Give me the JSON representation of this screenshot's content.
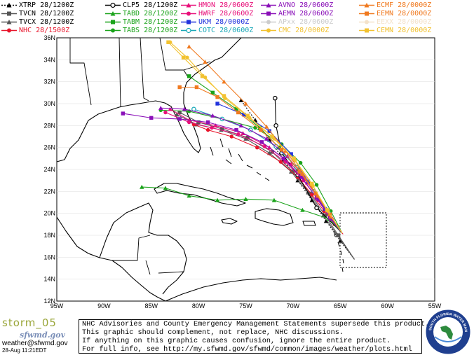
{
  "legend": [
    {
      "label": "XTRP 28/1200Z",
      "color": "#000000",
      "marker": "tri-dashed"
    },
    {
      "label": "TVCN 28/1200Z",
      "color": "#555555",
      "marker": "square"
    },
    {
      "label": "TVCX 28/1200Z",
      "color": "#555555",
      "marker": "triangle"
    },
    {
      "label": "NHC 28/1500Z",
      "color": "#e8152b",
      "marker": "circle"
    },
    {
      "label": "CLP5 28/1200Z",
      "color": "#000000",
      "marker": "circle-open"
    },
    {
      "label": "TABD 28/1200Z",
      "color": "#1aa31a",
      "marker": "triangle"
    },
    {
      "label": "TABM 28/1200Z",
      "color": "#1aa31a",
      "marker": "square"
    },
    {
      "label": "TABS 28/1200Z",
      "color": "#1aa31a",
      "marker": "circle"
    },
    {
      "label": "HMON 28/0600Z",
      "color": "#e8107a",
      "marker": "triangle"
    },
    {
      "label": "HWRF 28/0600Z",
      "color": "#e8107a",
      "marker": "circle"
    },
    {
      "label": "UKM 28/0000Z",
      "color": "#2233dd",
      "marker": "square"
    },
    {
      "label": "COTC 28/0600Z",
      "color": "#1aa8b8",
      "marker": "circle-open"
    },
    {
      "label": "AVNO 28/0600Z",
      "color": "#8a10b8",
      "marker": "triangle"
    },
    {
      "label": "AEMN 28/0600Z",
      "color": "#8a10b8",
      "marker": "square"
    },
    {
      "label": "APxx 28/0600Z",
      "color": "#cccccc",
      "marker": "circle"
    },
    {
      "label": "CMC 28/0000Z",
      "color": "#f2c230",
      "marker": "circle"
    },
    {
      "label": "ECMF 28/0000Z",
      "color": "#f07a20",
      "marker": "triangle"
    },
    {
      "label": "EEMN 28/0000Z",
      "color": "#f07a20",
      "marker": "square"
    },
    {
      "label": "EEXX 28/0000Z",
      "color": "#f4e2ca",
      "marker": "circle"
    },
    {
      "label": "CEMN 28/0000Z",
      "color": "#f2c230",
      "marker": "square"
    }
  ],
  "map": {
    "lat_labels": [
      "36N",
      "34N",
      "32N",
      "30N",
      "28N",
      "26N",
      "24N",
      "22N",
      "20N",
      "18N",
      "16N",
      "14N",
      "12N"
    ],
    "lon_labels": [
      "95W",
      "90W",
      "85W",
      "80W",
      "75W",
      "70W",
      "65W",
      "60W",
      "55W"
    ],
    "lat_range": [
      12,
      36
    ],
    "lon_range": [
      -95,
      -55
    ],
    "tracks": [
      {
        "name": "XTRP",
        "color": "#000000",
        "marker": "tri",
        "points": [
          [
            -63.5,
            15.8
          ],
          [
            -65,
            17.5
          ],
          [
            -66.5,
            19.3
          ],
          [
            -68,
            21.2
          ],
          [
            -69.5,
            23
          ],
          [
            -71,
            24.9
          ],
          [
            -72.5,
            26.7
          ],
          [
            -74,
            28.5
          ],
          [
            -75.5,
            30.3
          ]
        ]
      },
      {
        "name": "TVCN",
        "color": "#555555",
        "marker": "square",
        "points": [
          [
            -63.5,
            15.8
          ],
          [
            -65.2,
            18
          ],
          [
            -66.6,
            19.8
          ],
          [
            -68.2,
            21.8
          ],
          [
            -70,
            23.8
          ],
          [
            -72.2,
            25.6
          ],
          [
            -74.8,
            26.9
          ],
          [
            -77.5,
            27.7
          ],
          [
            -80,
            28.3
          ],
          [
            -82,
            29.2
          ]
        ]
      },
      {
        "name": "TVCX",
        "color": "#555555",
        "marker": "tri",
        "points": [
          [
            -63.5,
            15.8
          ],
          [
            -65.3,
            18
          ],
          [
            -66.8,
            19.8
          ],
          [
            -68.4,
            21.9
          ],
          [
            -70.2,
            23.8
          ],
          [
            -72.5,
            25.5
          ],
          [
            -75,
            26.8
          ],
          [
            -77.6,
            27.6
          ],
          [
            -80.2,
            28.1
          ],
          [
            -82.3,
            29
          ]
        ]
      },
      {
        "name": "NHC",
        "color": "#e8152b",
        "marker": "circle",
        "points": [
          [
            -64.7,
            18.1
          ],
          [
            -65.6,
            19
          ],
          [
            -66.7,
            20.2
          ],
          [
            -68,
            21.7
          ],
          [
            -69.5,
            23.3
          ],
          [
            -71.3,
            24.7
          ],
          [
            -73.8,
            26
          ],
          [
            -76.5,
            27
          ],
          [
            -79,
            27.6
          ],
          [
            -80.5,
            28.1
          ]
        ]
      },
      {
        "name": "CLP5",
        "color": "#000000",
        "marker": "circle-open",
        "points": [
          [
            -64.8,
            18.2
          ],
          [
            -67.5,
            20.5
          ],
          [
            -69.5,
            23.5
          ],
          [
            -71.2,
            25.5
          ],
          [
            -71.8,
            28
          ],
          [
            -71.9,
            30.5
          ]
        ]
      },
      {
        "name": "TABD",
        "color": "#1aa31a",
        "marker": "tri",
        "points": [
          [
            -64.8,
            18.2
          ],
          [
            -66.2,
            19.5
          ],
          [
            -69,
            20.3
          ],
          [
            -72,
            21.2
          ],
          [
            -75,
            21.3
          ],
          [
            -78,
            21.2
          ],
          [
            -81,
            21.6
          ],
          [
            -83.5,
            22.3
          ],
          [
            -86,
            22.4
          ]
        ]
      },
      {
        "name": "TABM",
        "color": "#1aa31a",
        "marker": "square",
        "points": [
          [
            -64.8,
            18.2
          ],
          [
            -66.2,
            20
          ],
          [
            -67.8,
            22
          ],
          [
            -69.5,
            24
          ],
          [
            -71.5,
            26
          ],
          [
            -73.5,
            27.8
          ],
          [
            -76,
            29.5
          ],
          [
            -78.5,
            31
          ],
          [
            -81,
            32.5
          ]
        ]
      },
      {
        "name": "TABS",
        "color": "#1aa31a",
        "marker": "circle",
        "points": [
          [
            -64.8,
            18.2
          ],
          [
            -66,
            20.2
          ],
          [
            -67.5,
            22.6
          ],
          [
            -69.2,
            24.6
          ],
          [
            -71.2,
            26.3
          ],
          [
            -74,
            27.8
          ],
          [
            -77.5,
            28.6
          ],
          [
            -81,
            29.3
          ],
          [
            -84,
            29.4
          ]
        ]
      },
      {
        "name": "HMON",
        "color": "#e8107a",
        "marker": "tri",
        "points": [
          [
            -64.8,
            18.2
          ],
          [
            -65.8,
            19.5
          ],
          [
            -67,
            21
          ],
          [
            -68.5,
            22.8
          ],
          [
            -70.2,
            24.5
          ],
          [
            -72.5,
            26
          ],
          [
            -75.3,
            27.3
          ],
          [
            -78.2,
            28
          ],
          [
            -81,
            28.5
          ],
          [
            -83,
            29.5
          ]
        ]
      },
      {
        "name": "HWRF",
        "color": "#e8107a",
        "marker": "circle",
        "points": [
          [
            -64.8,
            18.2
          ],
          [
            -66,
            19.6
          ],
          [
            -67.3,
            21.2
          ],
          [
            -68.9,
            23
          ],
          [
            -70.8,
            24.7
          ],
          [
            -73,
            26.1
          ],
          [
            -75.8,
            27.2
          ],
          [
            -78.6,
            27.8
          ],
          [
            -81,
            28.3
          ],
          [
            -83.5,
            29.2
          ]
        ]
      },
      {
        "name": "UKM",
        "color": "#2233dd",
        "marker": "square",
        "points": [
          [
            -64.8,
            18.2
          ],
          [
            -66.6,
            20.4
          ],
          [
            -68.4,
            22.9
          ],
          [
            -70.2,
            25.4
          ],
          [
            -72.5,
            27.5
          ],
          [
            -75.2,
            29
          ],
          [
            -78,
            30
          ]
        ]
      },
      {
        "name": "COTC",
        "color": "#1aa8b8",
        "marker": "circle-open",
        "points": [
          [
            -64.8,
            18.2
          ],
          [
            -66.2,
            20
          ],
          [
            -67.8,
            22
          ],
          [
            -69.6,
            24.2
          ],
          [
            -71.8,
            26.1
          ],
          [
            -74.5,
            27.6
          ],
          [
            -77.5,
            28.6
          ],
          [
            -80.5,
            29.5
          ]
        ]
      },
      {
        "name": "AVNO",
        "color": "#8a10b8",
        "marker": "tri",
        "points": [
          [
            -64.8,
            18.2
          ],
          [
            -66,
            19.5
          ],
          [
            -67.3,
            21.3
          ],
          [
            -68.8,
            23.3
          ],
          [
            -70.6,
            25.2
          ],
          [
            -72.8,
            26.8
          ],
          [
            -75.5,
            28
          ],
          [
            -78.5,
            28.9
          ],
          [
            -81.5,
            29.5
          ],
          [
            -84,
            29.6
          ]
        ]
      },
      {
        "name": "AEMN",
        "color": "#8a10b8",
        "marker": "square",
        "points": [
          [
            -64.8,
            18.2
          ],
          [
            -66.1,
            19.6
          ],
          [
            -67.5,
            21.4
          ],
          [
            -69.1,
            23.3
          ],
          [
            -71,
            25
          ],
          [
            -73.3,
            26.5
          ],
          [
            -76,
            27.6
          ],
          [
            -79,
            28.3
          ],
          [
            -82,
            28.6
          ],
          [
            -85,
            28.7
          ],
          [
            -88,
            29.1
          ]
        ]
      },
      {
        "name": "CMC",
        "color": "#f2c230",
        "marker": "circle",
        "points": [
          [
            -64.8,
            18.2
          ],
          [
            -66.3,
            20.2
          ],
          [
            -67.9,
            22.5
          ],
          [
            -69.8,
            24.8
          ],
          [
            -72,
            26.8
          ],
          [
            -74.6,
            28.7
          ],
          [
            -77.2,
            30.5
          ],
          [
            -79.3,
            32.4
          ],
          [
            -81.2,
            34.2
          ],
          [
            -83,
            35.6
          ]
        ]
      },
      {
        "name": "ECMF",
        "color": "#f07a20",
        "marker": "tri",
        "points": [
          [
            -64.8,
            18.2
          ],
          [
            -66,
            19.7
          ],
          [
            -67.4,
            21.6
          ],
          [
            -69,
            23.6
          ],
          [
            -70.8,
            25.7
          ],
          [
            -72.8,
            27.9
          ],
          [
            -75,
            30
          ],
          [
            -77.3,
            32
          ],
          [
            -79.3,
            33.8
          ],
          [
            -81,
            35.2
          ]
        ]
      },
      {
        "name": "EEMN",
        "color": "#f07a20",
        "marker": "square",
        "points": [
          [
            -64.8,
            18.2
          ],
          [
            -66.1,
            19.9
          ],
          [
            -67.6,
            21.8
          ],
          [
            -69.3,
            23.8
          ],
          [
            -71.2,
            25.8
          ],
          [
            -73.4,
            27.6
          ],
          [
            -75.8,
            29.2
          ],
          [
            -78,
            30.6
          ],
          [
            -80.2,
            31.5
          ],
          [
            -82,
            31.5
          ]
        ]
      },
      {
        "name": "CEMN",
        "color": "#f2c230",
        "marker": "square",
        "points": [
          [
            -64.8,
            18.2
          ],
          [
            -66.4,
            20.3
          ],
          [
            -68,
            22.7
          ],
          [
            -69.9,
            25
          ],
          [
            -72.2,
            27
          ],
          [
            -74.8,
            28.9
          ],
          [
            -77.3,
            30.7
          ],
          [
            -79.6,
            32.5
          ],
          [
            -81.6,
            34.2
          ],
          [
            -83.2,
            35.6
          ]
        ]
      }
    ]
  },
  "footer": {
    "storm_name": "storm_05",
    "logo_text": "sfwmd.gov",
    "email": "weather@sfwmd.gov",
    "datestamp": "28-Aug 11:21EDT",
    "disclaimer_lines": [
      "NHC Advisories and County Emergency Management Statements supersede this product.",
      "This graphic should complement, not replace, NHC discussions.",
      "If anything on this graphic causes confusion, ignore the entire product.",
      "For full info, see  http://my.sfwmd.gov/sfwmd/common/images/weather/plots.html"
    ],
    "seal_text": "SOUTH FLORIDA WATER MANAGEMENT DISTRICT"
  }
}
